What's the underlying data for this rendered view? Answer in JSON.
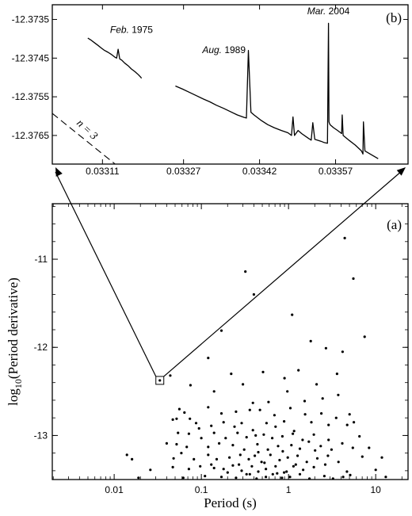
{
  "chart_data": [
    {
      "panel": "(b)",
      "type": "line",
      "yticks": [
        -12.3735,
        -12.3745,
        -12.3755,
        -12.3765
      ],
      "ytick_labels": [
        "-12.3735",
        "-12.3745",
        "-12.3755",
        "-12.3765"
      ],
      "xticks": [
        0.03311,
        0.03327,
        0.03342,
        0.03357
      ],
      "xtick_labels": [
        "0.03311",
        "0.03327",
        "0.03342",
        "0.03357"
      ],
      "xlim": [
        0.033011,
        0.033713
      ],
      "ylim": [
        -12.37724,
        -12.37312
      ],
      "segments": [
        {
          "x": [
            0.033081,
            0.033087,
            0.033094,
            0.033101,
            0.033107,
            0.033114,
            0.033121,
            0.033127,
            0.033134,
            0.033138,
            0.033141,
            0.033144,
            0.033148,
            0.033154,
            0.033161,
            0.033167,
            0.033174,
            0.033181,
            0.033186,
            0.033187
          ],
          "y": [
            -12.37398,
            -12.37403,
            -12.3741,
            -12.37417,
            -12.37423,
            -12.3743,
            -12.37435,
            -12.3744,
            -12.37447,
            -12.3745,
            -12.37427,
            -12.37452,
            -12.37455,
            -12.37463,
            -12.3747,
            -12.37478,
            -12.37485,
            -12.37493,
            -12.375,
            -12.37502
          ]
        },
        {
          "x": [
            0.033254,
            0.033268,
            0.033281,
            0.033295,
            0.033308,
            0.033322,
            0.033335,
            0.033349,
            0.033362,
            0.033376,
            0.033389,
            0.033394,
            0.033398,
            0.033403,
            0.033409,
            0.033422,
            0.033436,
            0.033449,
            0.033463,
            0.033476,
            0.033483,
            0.033486,
            0.033489,
            0.033496,
            0.033503,
            0.033516,
            0.033522,
            0.033525,
            0.033529,
            0.033541,
            0.033547,
            0.033554,
            0.033556,
            0.033557,
            0.033559,
            0.033566,
            0.033574,
            0.033582,
            0.033583,
            0.033585,
            0.033597,
            0.033609,
            0.033621,
            0.033624,
            0.033625,
            0.033628,
            0.033641,
            0.033654
          ],
          "y": [
            -12.37522,
            -12.3753,
            -12.37538,
            -12.37547,
            -12.37555,
            -12.37563,
            -12.37572,
            -12.3758,
            -12.37588,
            -12.37597,
            -12.37603,
            -12.37605,
            -12.3743,
            -12.3759,
            -12.37597,
            -12.3761,
            -12.37622,
            -12.3763,
            -12.37637,
            -12.37643,
            -12.3765,
            -12.37602,
            -12.3765,
            -12.37637,
            -12.37645,
            -12.37657,
            -12.37662,
            -12.37617,
            -12.3766,
            -12.37665,
            -12.37668,
            -12.3767,
            -12.3736,
            -12.37615,
            -12.37622,
            -12.3763,
            -12.37637,
            -12.37645,
            -12.37597,
            -12.3765,
            -12.37663,
            -12.37675,
            -12.3769,
            -12.37698,
            -12.37615,
            -12.3769,
            -12.377,
            -12.3771
          ]
        }
      ],
      "annotations": [
        {
          "month": "Feb.",
          "year": "1975",
          "x": 0.033125,
          "y": -12.37385
        },
        {
          "month": "Aug.",
          "year": "1989",
          "x": 0.033307,
          "y": -12.37437
        },
        {
          "month": "Mar.",
          "year": "2004",
          "x": 0.033514,
          "y": -12.37337
        }
      ],
      "braking_line_label": "n = 3",
      "braking_line": {
        "x": [
          0.033011,
          0.033135
        ],
        "y": [
          -12.37593,
          -12.37724
        ]
      }
    },
    {
      "panel": "(a)",
      "type": "scatter",
      "xlabel": "Period (s)",
      "ylabel_main": "log",
      "ylabel_sub": "10",
      "ylabel_rest": "(Period derivative)",
      "xscale": "log",
      "xlim": [
        0.00195,
        23.5
      ],
      "ylim": [
        -13.5,
        -10.37
      ],
      "xticks": [
        0.01,
        0.1,
        1,
        10
      ],
      "xtick_labels": [
        "0.01",
        "0.1",
        "1",
        "10"
      ],
      "yticks": [
        -11,
        -12,
        -13
      ],
      "ytick_labels": [
        "-11",
        "-12",
        "-13"
      ],
      "highlight": {
        "x": 0.0334,
        "y": -12.375
      },
      "points": [
        [
          4.41,
          -10.76
        ],
        [
          0.32,
          -11.14
        ],
        [
          0.4,
          -11.4
        ],
        [
          5.55,
          -11.22
        ],
        [
          0.17,
          -11.81
        ],
        [
          1.1,
          -11.63
        ],
        [
          1.8,
          -11.93
        ],
        [
          2.69,
          -12.01
        ],
        [
          4.17,
          -12.05
        ],
        [
          7.46,
          -11.88
        ],
        [
          0.12,
          -12.12
        ],
        [
          0.044,
          -12.32
        ],
        [
          0.22,
          -12.3
        ],
        [
          0.51,
          -12.28
        ],
        [
          0.9,
          -12.35
        ],
        [
          1.3,
          -12.26
        ],
        [
          2.1,
          -12.42
        ],
        [
          3.6,
          -12.3
        ],
        [
          0.075,
          -12.43
        ],
        [
          0.14,
          -12.5
        ],
        [
          0.3,
          -12.42
        ],
        [
          0.39,
          -12.63
        ],
        [
          0.59,
          -12.62
        ],
        [
          0.97,
          -12.5
        ],
        [
          1.53,
          -12.61
        ],
        [
          2.46,
          -12.58
        ],
        [
          3.72,
          -12.54
        ],
        [
          5.02,
          -12.76
        ],
        [
          0.056,
          -12.7
        ],
        [
          0.064,
          -12.74
        ],
        [
          0.087,
          -12.86
        ],
        [
          0.12,
          -12.68
        ],
        [
          0.17,
          -12.75
        ],
        [
          0.25,
          -12.73
        ],
        [
          0.36,
          -12.71
        ],
        [
          0.47,
          -12.71
        ],
        [
          0.69,
          -12.77
        ],
        [
          1.05,
          -12.69
        ],
        [
          1.55,
          -12.76
        ],
        [
          2.38,
          -12.75
        ],
        [
          3.52,
          -12.8
        ],
        [
          0.047,
          -12.82
        ],
        [
          0.052,
          -12.81
        ],
        [
          0.074,
          -12.81
        ],
        [
          0.094,
          -12.92
        ],
        [
          0.13,
          -12.89
        ],
        [
          0.18,
          -12.85
        ],
        [
          0.24,
          -12.9
        ],
        [
          0.29,
          -12.86
        ],
        [
          0.39,
          -12.94
        ],
        [
          0.56,
          -12.86
        ],
        [
          0.71,
          -12.9
        ],
        [
          0.89,
          -12.84
        ],
        [
          1.16,
          -12.95
        ],
        [
          1.83,
          -12.85
        ],
        [
          2.88,
          -12.88
        ],
        [
          4.71,
          -12.88
        ],
        [
          5.61,
          -12.85
        ],
        [
          0.054,
          -12.97
        ],
        [
          0.072,
          -12.98
        ],
        [
          0.1,
          -13.03
        ],
        [
          0.14,
          -12.97
        ],
        [
          0.19,
          -13.03
        ],
        [
          0.26,
          -12.97
        ],
        [
          0.33,
          -13.02
        ],
        [
          0.42,
          -13.0
        ],
        [
          0.52,
          -12.99
        ],
        [
          0.65,
          -13.03
        ],
        [
          0.85,
          -13.01
        ],
        [
          1.12,
          -12.98
        ],
        [
          1.45,
          -13.05
        ],
        [
          1.95,
          -12.99
        ],
        [
          2.88,
          -13.05
        ],
        [
          6.52,
          -13.01
        ],
        [
          0.052,
          -13.1
        ],
        [
          0.068,
          -13.13
        ],
        [
          0.12,
          -13.13
        ],
        [
          0.16,
          -13.09
        ],
        [
          0.23,
          -13.11
        ],
        [
          0.31,
          -13.16
        ],
        [
          0.44,
          -13.1
        ],
        [
          0.58,
          -13.16
        ],
        [
          0.76,
          -13.12
        ],
        [
          1.08,
          -13.11
        ],
        [
          1.35,
          -13.15
        ],
        [
          1.71,
          -13.07
        ],
        [
          2.34,
          -13.12
        ],
        [
          3.11,
          -13.16
        ],
        [
          4.14,
          -13.09
        ],
        [
          5.46,
          -13.14
        ],
        [
          8.39,
          -13.14
        ],
        [
          0.014,
          -13.22
        ],
        [
          0.048,
          -13.26
        ],
        [
          0.059,
          -13.2
        ],
        [
          0.082,
          -13.27
        ],
        [
          0.12,
          -13.22
        ],
        [
          0.15,
          -13.27
        ],
        [
          0.21,
          -13.25
        ],
        [
          0.28,
          -13.22
        ],
        [
          0.35,
          -13.27
        ],
        [
          0.41,
          -13.23
        ],
        [
          0.49,
          -13.3
        ],
        [
          0.62,
          -13.22
        ],
        [
          0.79,
          -13.28
        ],
        [
          0.98,
          -13.25
        ],
        [
          1.27,
          -13.23
        ],
        [
          1.62,
          -13.3
        ],
        [
          2.14,
          -13.26
        ],
        [
          2.83,
          -13.23
        ],
        [
          3.74,
          -13.3
        ],
        [
          7.03,
          -13.24
        ],
        [
          11.78,
          -13.25
        ],
        [
          0.016,
          -13.27
        ],
        [
          0.026,
          -13.39
        ],
        [
          0.047,
          -13.36
        ],
        [
          0.072,
          -13.38
        ],
        [
          0.097,
          -13.35
        ],
        [
          0.14,
          -13.37
        ],
        [
          0.18,
          -13.38
        ],
        [
          0.23,
          -13.34
        ],
        [
          0.29,
          -13.4
        ],
        [
          0.38,
          -13.35
        ],
        [
          0.45,
          -13.41
        ],
        [
          0.55,
          -13.38
        ],
        [
          0.71,
          -13.35
        ],
        [
          0.89,
          -13.42
        ],
        [
          1.14,
          -13.35
        ],
        [
          1.47,
          -13.39
        ],
        [
          1.95,
          -13.36
        ],
        [
          2.64,
          -13.33
        ],
        [
          4.68,
          -13.41
        ],
        [
          10.0,
          -13.39
        ],
        [
          0.019,
          -13.48
        ],
        [
          0.062,
          -13.48
        ],
        [
          0.11,
          -13.46
        ],
        [
          0.17,
          -13.47
        ],
        [
          0.25,
          -13.48
        ],
        [
          0.33,
          -13.44
        ],
        [
          0.43,
          -13.49
        ],
        [
          0.55,
          -13.47
        ],
        [
          0.66,
          -13.44
        ],
        [
          0.84,
          -13.48
        ],
        [
          1.04,
          -13.47
        ],
        [
          1.35,
          -13.44
        ],
        [
          1.74,
          -13.49
        ],
        [
          2.58,
          -13.46
        ],
        [
          3.24,
          -13.49
        ],
        [
          4.23,
          -13.47
        ],
        [
          5.1,
          -13.45
        ],
        [
          13.06,
          -13.47
        ],
        [
          0.2,
          -13.42
        ],
        [
          0.36,
          -13.44
        ],
        [
          0.74,
          -13.43
        ],
        [
          0.95,
          -13.41
        ],
        [
          1.21,
          -13.33
        ],
        [
          0.13,
          -13.33
        ],
        [
          0.27,
          -13.33
        ],
        [
          0.53,
          -13.31
        ],
        [
          2.02,
          -13.17
        ],
        [
          0.04,
          -13.09
        ],
        [
          0.86,
          -13.18
        ],
        [
          0.45,
          -13.19
        ]
      ]
    }
  ]
}
